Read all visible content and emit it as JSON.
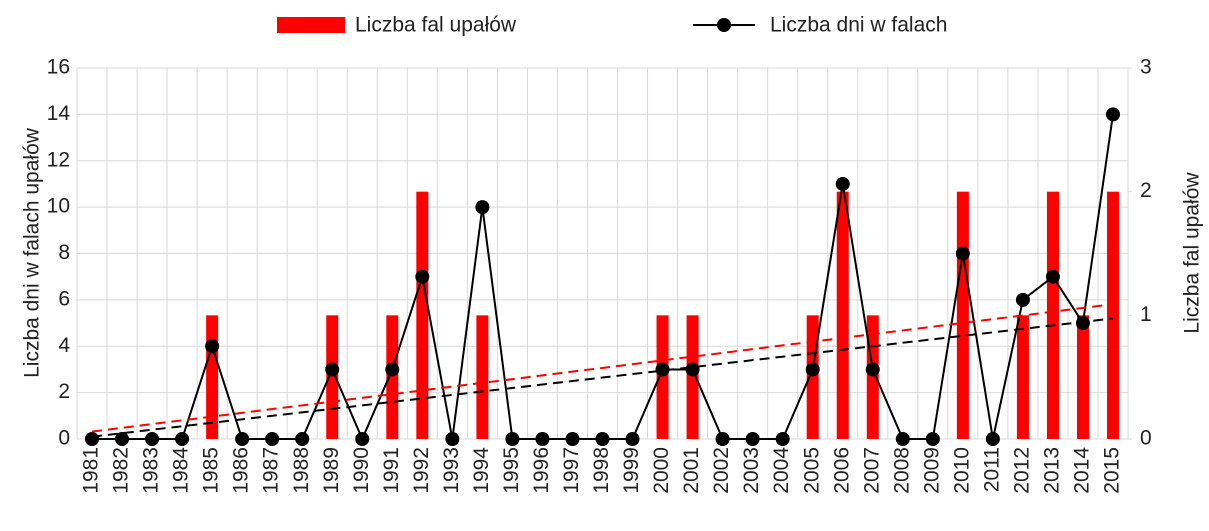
{
  "chart_data": {
    "type": "bar-line",
    "categories": [
      "1981",
      "1982",
      "1983",
      "1984",
      "1985",
      "1986",
      "1987",
      "1988",
      "1989",
      "1990",
      "1991",
      "1992",
      "1993",
      "1994",
      "1995",
      "1996",
      "1997",
      "1998",
      "1999",
      "2000",
      "2001",
      "2002",
      "2003",
      "2004",
      "2005",
      "2006",
      "2007",
      "2008",
      "2009",
      "2010",
      "2011",
      "2012",
      "2013",
      "2014",
      "2015"
    ],
    "series": [
      {
        "name": "Liczba fal upałów",
        "type": "bar",
        "axis": "y2",
        "color": "#ff0000",
        "values": [
          0,
          0,
          0,
          0,
          1,
          0,
          0,
          0,
          1,
          0,
          1,
          2,
          0,
          1,
          0,
          0,
          0,
          0,
          0,
          1,
          1,
          0,
          0,
          0,
          1,
          2,
          1,
          0,
          0,
          2,
          0,
          1,
          2,
          1,
          2
        ],
        "trend": {
          "start": 0.06,
          "end": 1.09
        }
      },
      {
        "name": "Liczba dni w falach",
        "type": "line",
        "axis": "y",
        "color": "#000000",
        "values": [
          0,
          0,
          0,
          0,
          4,
          0,
          0,
          0,
          3,
          0,
          3,
          7,
          0,
          10,
          0,
          0,
          0,
          0,
          0,
          3,
          3,
          0,
          0,
          0,
          3,
          11,
          3,
          0,
          0,
          8,
          0,
          6,
          7,
          5,
          14
        ],
        "trend": {
          "start": 0.1,
          "end": 5.2
        }
      }
    ],
    "ylabel": "Liczba dni w falach upałów",
    "y2label": "Liczba fal upałów",
    "ylim": [
      0,
      16
    ],
    "yticks": [
      0,
      2,
      4,
      6,
      8,
      10,
      12,
      14,
      16
    ],
    "y2lim": [
      0,
      3
    ],
    "y2ticks": [
      0,
      1,
      2,
      3
    ],
    "grid": true
  }
}
